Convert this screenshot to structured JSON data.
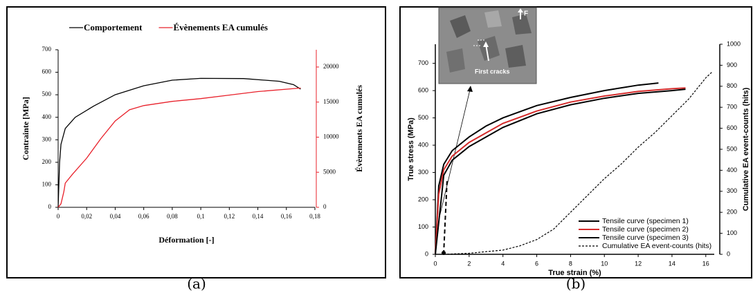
{
  "figure_labels": [
    "(a)",
    "(b)"
  ],
  "chart_data": [
    {
      "type": "line",
      "xlabel": "Déformation [-]",
      "ylabel": "Contrainte [MPa]",
      "y2label": "Évènements EA cumulés",
      "xlim": [
        0,
        0.18
      ],
      "xticks": [
        0,
        {
          "value": 0.02,
          "label": "0,02"
        },
        {
          "value": 0.04,
          "label": "0,04"
        },
        {
          "value": 0.06,
          "label": "0,06"
        },
        {
          "value": 0.08,
          "label": "0,08"
        },
        {
          "value": 0.1,
          "label": "0,1"
        },
        {
          "value": 0.12,
          "label": "0,12"
        },
        {
          "value": 0.14,
          "label": "0,14"
        },
        {
          "value": 0.16,
          "label": "0,16"
        },
        {
          "value": 0.18,
          "label": "0,18"
        }
      ],
      "ylim": [
        0,
        700
      ],
      "yticks": [
        0,
        100,
        200,
        300,
        400,
        500,
        600,
        700
      ],
      "y2lim": [
        0,
        22460
      ],
      "y2ticks": [
        0,
        5000,
        10000,
        15000,
        20000
      ],
      "y2color": "#e8202a",
      "legend": "top",
      "series": [
        {
          "name": "Comportement",
          "color": "#000000",
          "x": [
            0,
            0.001,
            0.002,
            0.005,
            0.012,
            0.025,
            0.04,
            0.06,
            0.08,
            0.1,
            0.13,
            0.155,
            0.165,
            0.17
          ],
          "values": [
            0,
            200,
            280,
            350,
            400,
            450,
            500,
            540,
            565,
            573,
            572,
            560,
            545,
            525
          ]
        },
        {
          "name": "Évènements EA cumulés",
          "color": "#e8202a",
          "axis": "y2",
          "x": [
            0,
            0.002,
            0.004,
            0.005,
            0.01,
            0.02,
            0.03,
            0.04,
            0.05,
            0.06,
            0.08,
            0.1,
            0.12,
            0.14,
            0.17
          ],
          "values": [
            0,
            500,
            2200,
            3450,
            4700,
            7000,
            9800,
            12300,
            13900,
            14500,
            15100,
            15500,
            16000,
            16500,
            17000
          ]
        }
      ]
    },
    {
      "type": "line",
      "xlabel": "True strain (%)",
      "ylabel": "True stress (MPa)",
      "y2label": "Cumulative EA event-counts (hits)",
      "xlim": [
        0,
        16.5
      ],
      "xticks": [
        0,
        2,
        4,
        6,
        8,
        10,
        12,
        14,
        16
      ],
      "ylim": [
        0,
        770
      ],
      "yticks": [
        0,
        100,
        200,
        300,
        400,
        500,
        600,
        700
      ],
      "y2lim": [
        0,
        1000
      ],
      "y2ticks": [
        0,
        100,
        200,
        300,
        400,
        500,
        600,
        700,
        800,
        900,
        1000
      ],
      "y2color": "#000000",
      "legend": "lower right",
      "annotations": [
        "F",
        "First cracks"
      ],
      "series": [
        {
          "name": "Tensile curve (specimen 1)",
          "color": "#000000",
          "x": [
            0,
            0.2,
            0.5,
            1,
            2,
            3,
            4,
            6,
            8,
            10,
            12,
            13.2
          ],
          "values": [
            0,
            250,
            330,
            380,
            430,
            470,
            500,
            545,
            575,
            600,
            620,
            628
          ]
        },
        {
          "name": "Tensile curve (specimen 2)",
          "color": "#d42a2a",
          "x": [
            0,
            0.2,
            0.5,
            1,
            2,
            4,
            6,
            8,
            10,
            12,
            14,
            14.8
          ],
          "values": [
            0,
            220,
            310,
            360,
            410,
            480,
            525,
            558,
            580,
            597,
            607,
            610
          ]
        },
        {
          "name": "Tensile curve (specimen 3)",
          "color": "#000000",
          "x": [
            0,
            0.5,
            1,
            2,
            4,
            6,
            8,
            10,
            12,
            14,
            14.8
          ],
          "values": [
            0,
            290,
            345,
            395,
            465,
            515,
            548,
            572,
            590,
            600,
            605
          ]
        },
        {
          "name": "Cumulative EA event-counts (hits)",
          "color": "#000000",
          "axis": "y2",
          "dash": true,
          "x": [
            0.5,
            2,
            4,
            5,
            6,
            7,
            8,
            9,
            10,
            11,
            12,
            13,
            14,
            15,
            16,
            16.4
          ],
          "values": [
            0,
            5,
            20,
            40,
            70,
            120,
            200,
            280,
            360,
            430,
            510,
            580,
            660,
            740,
            840,
            870
          ]
        }
      ]
    }
  ]
}
